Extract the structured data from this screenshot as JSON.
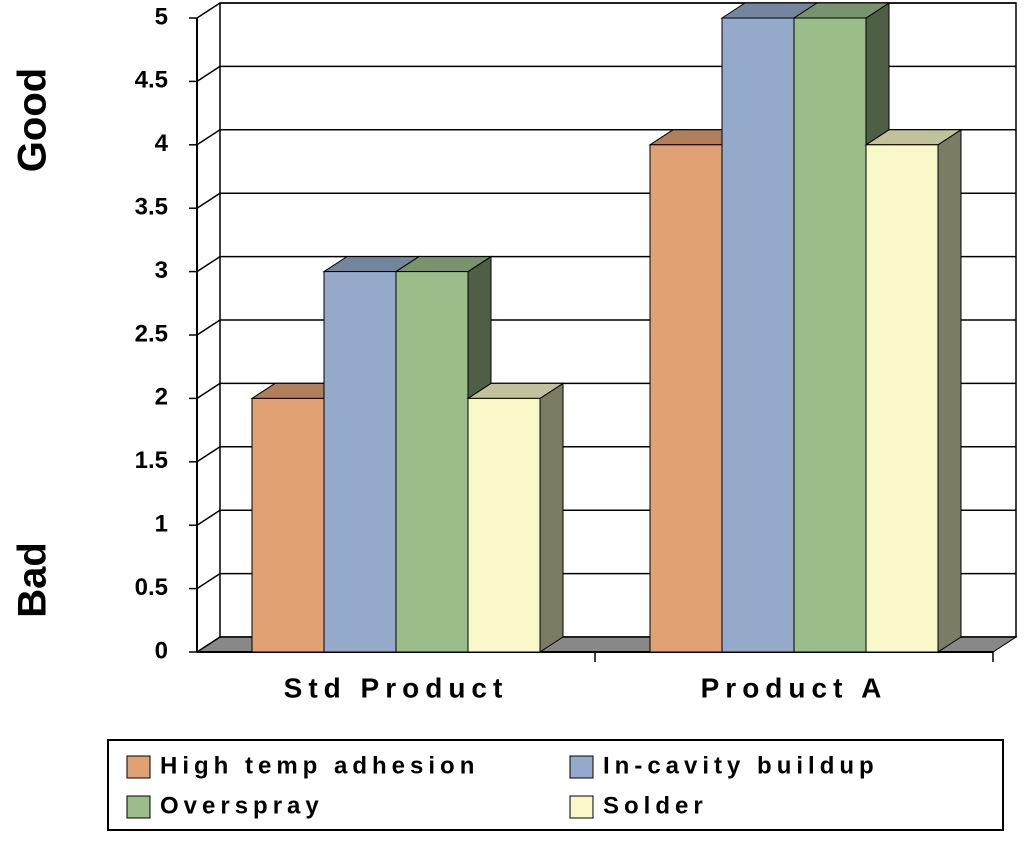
{
  "chart_data": {
    "type": "bar3d",
    "annotations": [
      "Good",
      "Bad"
    ],
    "categories": [
      "Std Product",
      "Product A"
    ],
    "series": [
      {
        "name": "High temp adhesion",
        "color": "#e2a173",
        "values": [
          2,
          4
        ]
      },
      {
        "name": "In-cavity buildup",
        "color": "#95aacb",
        "values": [
          3,
          5
        ]
      },
      {
        "name": "Overspray",
        "color": "#9bbd8a",
        "values": [
          3,
          5
        ]
      },
      {
        "name": "Solder",
        "color": "#f8f8c8",
        "values": [
          2,
          4
        ]
      }
    ],
    "ylim": [
      0,
      5
    ],
    "yticks": [
      0,
      0.5,
      1,
      1.5,
      2,
      2.5,
      3,
      3.5,
      4,
      4.5,
      5
    ],
    "grid": true,
    "legend": "bottom"
  }
}
